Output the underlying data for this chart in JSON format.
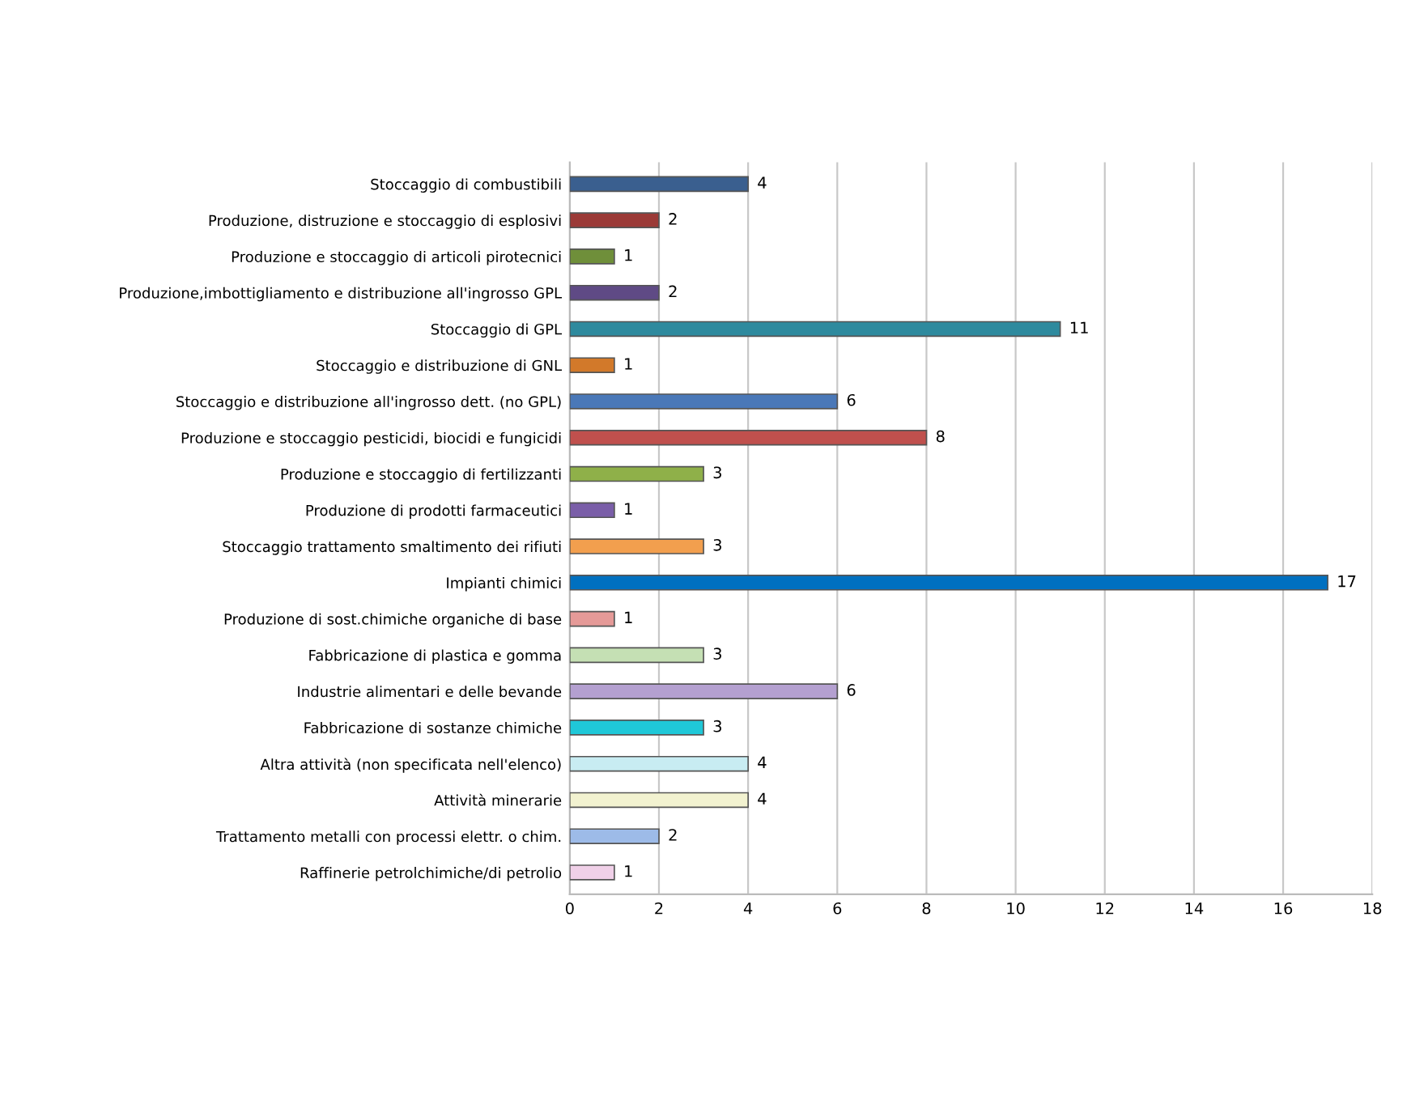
{
  "chart_data": {
    "type": "bar",
    "orientation": "horizontal",
    "categories": [
      "Stoccaggio di combustibili",
      "Produzione, distruzione e stoccaggio di esplosivi",
      "Produzione e stoccaggio di articoli pirotecnici",
      "Produzione,imbottigliamento e distribuzione all'ingrosso GPL",
      "Stoccaggio di GPL",
      "Stoccaggio e distribuzione di GNL",
      "Stoccaggio e distribuzione all'ingrosso dett. (no GPL)",
      "Produzione e stoccaggio pesticidi, biocidi e fungicidi",
      "Produzione e stoccaggio di fertilizzanti",
      "Produzione di prodotti farmaceutici",
      "Stoccaggio trattamento smaltimento dei rifiuti",
      "Impianti chimici",
      "Produzione di sost.chimiche organiche di base",
      "Fabbricazione di plastica e gomma",
      "Industrie alimentari e delle bevande",
      "Fabbricazione di sostanze chimiche",
      "Altra attività (non specificata nell'elenco)",
      "Attività minerarie",
      "Trattamento metalli con processi elettr. o chim.",
      "Raffinerie petrolchimiche/di petrolio"
    ],
    "values": [
      4,
      2,
      1,
      2,
      11,
      1,
      6,
      8,
      3,
      1,
      3,
      17,
      1,
      3,
      6,
      3,
      4,
      4,
      2,
      1
    ],
    "colors": [
      "#3a5f8f",
      "#9b3a37",
      "#6f8f3a",
      "#5f4a85",
      "#2e8a9e",
      "#d2792a",
      "#4a78b8",
      "#c0504d",
      "#8fb049",
      "#7a5ea8",
      "#f29f4e",
      "#0070c0",
      "#e59a98",
      "#c5e0b4",
      "#b4a0d0",
      "#1fc8d8",
      "#c8ecf2",
      "#f2f2d0",
      "#9dbbe8",
      "#f0d0e8"
    ],
    "xlim": [
      0,
      18
    ],
    "xticks": [
      0,
      2,
      4,
      6,
      8,
      10,
      12,
      14,
      16,
      18
    ],
    "grid": "x",
    "data_labels": true
  }
}
